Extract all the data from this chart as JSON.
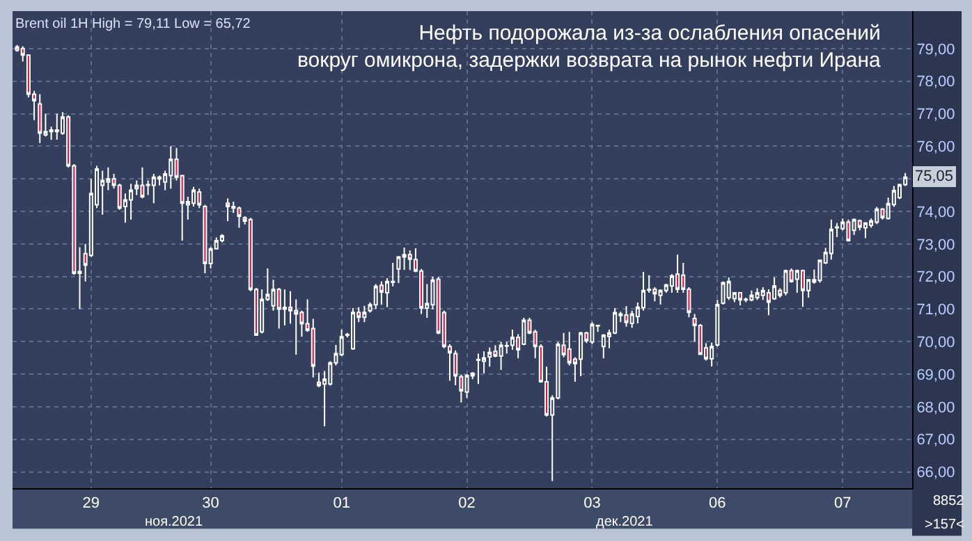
{
  "chart_data": {
    "type": "candlestick",
    "title": "Нефть подорожала из-за ослабления опасений\nвокруг омикрона, задержки возврата на рынок нефти Ирана",
    "subtitle": "Brent oil 1H High = 79,11 Low = 65,72",
    "categories": [
      null,
      null,
      null,
      null,
      null,
      null,
      null,
      null,
      null,
      null,
      null,
      null,
      null,
      "29",
      null,
      null,
      null,
      null,
      null,
      null,
      null,
      null,
      null,
      null,
      null,
      null,
      null,
      null,
      null,
      null,
      null,
      null,
      null,
      null,
      "30",
      null,
      null,
      null,
      null,
      null,
      null,
      null,
      null,
      null,
      null,
      null,
      null,
      null,
      null,
      null,
      null,
      null,
      null,
      null,
      null,
      null,
      null,
      "01",
      null,
      null,
      null,
      null,
      null,
      null,
      null,
      null,
      null,
      null,
      null,
      null,
      null,
      null,
      null,
      null,
      null,
      null,
      null,
      null,
      null,
      "02",
      null,
      null,
      null,
      null,
      null,
      null,
      null,
      null,
      null,
      null,
      null,
      null,
      null,
      null,
      null,
      null,
      null,
      null,
      null,
      null,
      null,
      "03",
      null,
      null,
      null,
      null,
      null,
      null,
      null,
      null,
      null,
      null,
      null,
      null,
      null,
      null,
      null,
      null,
      null,
      null,
      null,
      null,
      null,
      "06",
      null,
      null,
      null,
      null,
      null,
      null,
      null,
      null,
      null,
      null,
      null,
      null,
      null,
      null,
      null,
      null,
      null,
      null,
      null,
      null,
      null,
      "07",
      null,
      null,
      null,
      null,
      null,
      null,
      null,
      null,
      null,
      null,
      null
    ],
    "ohlc": [
      [
        78.95,
        79.11,
        78.9,
        79.05
      ],
      [
        79.0,
        79.07,
        78.6,
        78.8
      ],
      [
        78.8,
        78.8,
        77.5,
        77.6
      ],
      [
        77.6,
        77.7,
        76.8,
        77.4
      ],
      [
        77.3,
        77.6,
        76.1,
        76.4
      ],
      [
        76.35,
        77.0,
        76.3,
        76.45
      ],
      [
        76.45,
        76.6,
        76.2,
        76.5
      ],
      [
        76.5,
        77.0,
        76.2,
        76.45
      ],
      [
        76.4,
        77.05,
        76.35,
        76.9
      ],
      [
        76.9,
        76.95,
        75.35,
        75.4
      ],
      [
        75.4,
        75.45,
        72.05,
        72.1
      ],
      [
        72.1,
        72.9,
        71.0,
        72.15
      ],
      [
        72.7,
        73.0,
        71.85,
        72.35
      ],
      [
        72.65,
        75.0,
        72.6,
        74.55
      ],
      [
        74.2,
        75.4,
        74.1,
        75.3
      ],
      [
        74.8,
        75.25,
        73.9,
        74.95
      ],
      [
        74.9,
        75.35,
        74.65,
        75.0
      ],
      [
        75.0,
        75.15,
        74.7,
        74.8
      ],
      [
        74.8,
        74.85,
        74.05,
        74.1
      ],
      [
        74.15,
        74.55,
        73.65,
        74.35
      ],
      [
        74.35,
        74.85,
        73.75,
        74.65
      ],
      [
        74.7,
        74.95,
        74.5,
        74.8
      ],
      [
        74.8,
        75.35,
        74.4,
        74.45
      ],
      [
        74.8,
        74.95,
        74.5,
        74.82
      ],
      [
        74.8,
        75.15,
        74.25,
        75.05
      ],
      [
        75.0,
        75.1,
        74.8,
        75.05
      ],
      [
        74.9,
        75.25,
        74.65,
        75.15
      ],
      [
        75.1,
        76.0,
        74.7,
        75.6
      ],
      [
        75.6,
        75.95,
        74.95,
        75.05
      ],
      [
        75.1,
        75.1,
        73.1,
        74.25
      ],
      [
        74.2,
        74.45,
        73.75,
        74.3
      ],
      [
        74.25,
        74.75,
        74.15,
        74.65
      ],
      [
        74.6,
        74.7,
        74.1,
        74.2
      ],
      [
        74.15,
        74.2,
        72.1,
        72.4
      ],
      [
        72.4,
        72.9,
        72.25,
        72.85
      ],
      [
        72.85,
        73.2,
        72.85,
        73.1
      ],
      [
        73.1,
        73.3,
        73.05,
        73.25
      ],
      [
        74.25,
        74.4,
        73.7,
        74.15
      ],
      [
        74.1,
        74.3,
        73.95,
        74.15
      ],
      [
        74.1,
        74.15,
        73.5,
        73.85
      ],
      [
        73.8,
        73.85,
        73.6,
        73.7
      ],
      [
        73.75,
        73.8,
        71.55,
        71.6
      ],
      [
        71.6,
        71.65,
        70.2,
        70.2
      ],
      [
        70.3,
        71.6,
        70.25,
        71.3
      ],
      [
        71.3,
        72.25,
        71.25,
        71.45
      ],
      [
        71.1,
        71.9,
        70.95,
        71.6
      ],
      [
        71.6,
        71.65,
        70.4,
        71.0
      ],
      [
        71.0,
        71.6,
        70.5,
        71.05
      ],
      [
        71.05,
        71.55,
        70.55,
        70.95
      ],
      [
        70.95,
        71.3,
        69.6,
        70.85
      ],
      [
        70.9,
        70.95,
        70.15,
        70.55
      ],
      [
        70.55,
        71.3,
        70.3,
        70.35
      ],
      [
        70.4,
        70.7,
        68.9,
        69.25
      ],
      [
        68.75,
        69.05,
        68.6,
        68.65
      ],
      [
        68.7,
        69.1,
        67.4,
        68.85
      ],
      [
        68.7,
        69.4,
        68.65,
        69.35
      ],
      [
        69.35,
        69.9,
        69.27,
        69.63
      ],
      [
        69.6,
        70.37,
        69.56,
        70.15
      ],
      [
        70.2,
        70.27,
        70.13,
        70.22
      ],
      [
        69.78,
        71.03,
        69.75,
        70.9
      ],
      [
        70.9,
        71.06,
        70.6,
        70.75
      ],
      [
        70.75,
        71.1,
        70.6,
        70.9
      ],
      [
        70.95,
        71.2,
        70.89,
        71.13
      ],
      [
        71.13,
        71.77,
        71.0,
        71.7
      ],
      [
        71.73,
        71.85,
        71.13,
        71.52
      ],
      [
        71.5,
        71.95,
        71.06,
        71.85
      ],
      [
        71.82,
        72.42,
        71.7,
        71.85
      ],
      [
        72.23,
        72.63,
        71.8,
        72.6
      ],
      [
        72.6,
        72.89,
        72.2,
        72.67
      ],
      [
        72.67,
        72.8,
        72.2,
        72.53
      ],
      [
        72.52,
        72.87,
        72.13,
        72.17
      ],
      [
        72.17,
        72.23,
        70.85,
        71.03
      ],
      [
        71.03,
        71.77,
        70.73,
        71.17
      ],
      [
        71.13,
        71.99,
        70.99,
        71.89
      ],
      [
        71.92,
        71.99,
        70.23,
        70.27
      ],
      [
        70.89,
        70.95,
        69.8,
        69.85
      ],
      [
        69.85,
        69.92,
        68.8,
        69.66
      ],
      [
        69.63,
        69.73,
        68.66,
        68.95
      ],
      [
        68.92,
        68.99,
        68.13,
        68.49
      ],
      [
        68.45,
        69.0,
        68.27,
        68.96
      ],
      [
        69.03,
        69.06,
        68.85,
        68.95
      ],
      [
        69.43,
        69.63,
        68.7,
        69.45
      ],
      [
        69.4,
        69.7,
        69.03,
        69.5
      ],
      [
        69.53,
        69.82,
        69.23,
        69.67
      ],
      [
        69.7,
        69.89,
        69.52,
        69.56
      ],
      [
        69.56,
        69.99,
        69.13,
        69.89
      ],
      [
        69.86,
        69.99,
        69.63,
        69.88
      ],
      [
        69.89,
        70.37,
        69.75,
        70.13
      ],
      [
        70.13,
        70.23,
        69.49,
        69.75
      ],
      [
        69.92,
        70.73,
        69.89,
        70.66
      ],
      [
        70.66,
        70.73,
        70.23,
        70.27
      ],
      [
        70.3,
        70.37,
        69.49,
        69.85
      ],
      [
        69.85,
        69.92,
        68.74,
        68.77
      ],
      [
        68.77,
        69.23,
        67.7,
        67.75
      ],
      [
        67.75,
        68.35,
        65.72,
        68.27
      ],
      [
        68.27,
        69.99,
        68.23,
        69.92
      ],
      [
        69.89,
        70.27,
        69.52,
        69.6
      ],
      [
        69.77,
        70.3,
        69.27,
        69.35
      ],
      [
        69.46,
        69.52,
        68.77,
        69.32
      ],
      [
        69.46,
        70.3,
        68.94,
        70.27
      ],
      [
        70.27,
        70.3,
        69.96,
        70.03
      ],
      [
        69.99,
        70.6,
        69.92,
        70.53
      ],
      [
        70.5,
        70.5,
        70.3,
        70.48
      ],
      [
        69.85,
        70.23,
        69.49,
        70.2
      ],
      [
        70.16,
        70.37,
        69.8,
        70.27
      ],
      [
        70.27,
        71.03,
        70.23,
        70.89
      ],
      [
        70.8,
        70.92,
        70.6,
        70.85
      ],
      [
        70.82,
        71.09,
        70.46,
        70.59
      ],
      [
        70.56,
        70.95,
        70.42,
        70.85
      ],
      [
        70.77,
        71.2,
        70.56,
        71.06
      ],
      [
        71.04,
        72.14,
        70.95,
        71.57
      ],
      [
        71.58,
        72.04,
        71.5,
        71.6
      ],
      [
        71.61,
        71.67,
        71.24,
        71.47
      ],
      [
        71.42,
        71.61,
        71.14,
        71.57
      ],
      [
        71.57,
        71.78,
        71.5,
        71.74
      ],
      [
        71.71,
        72.07,
        71.5,
        72.02
      ],
      [
        72.07,
        72.67,
        71.5,
        71.61
      ],
      [
        72.04,
        72.42,
        71.5,
        71.61
      ],
      [
        71.61,
        71.67,
        70.75,
        70.9
      ],
      [
        70.71,
        70.85,
        69.99,
        70.5
      ],
      [
        70.5,
        70.54,
        69.61,
        69.61
      ],
      [
        69.81,
        69.95,
        69.42,
        69.47
      ],
      [
        69.47,
        69.97,
        69.24,
        69.85
      ],
      [
        69.9,
        71.28,
        69.85,
        71.14
      ],
      [
        71.18,
        71.85,
        71.14,
        71.81
      ],
      [
        71.35,
        71.97,
        71.28,
        71.85
      ],
      [
        71.32,
        71.52,
        71.21,
        71.5
      ],
      [
        71.5,
        71.52,
        71.11,
        71.28
      ],
      [
        71.28,
        71.35,
        71.21,
        71.3
      ],
      [
        71.28,
        71.57,
        71.24,
        71.42
      ],
      [
        71.35,
        71.64,
        71.28,
        71.5
      ],
      [
        71.42,
        71.67,
        71.28,
        71.57
      ],
      [
        71.5,
        71.61,
        70.81,
        71.21
      ],
      [
        71.32,
        71.97,
        71.28,
        71.71
      ],
      [
        71.57,
        71.64,
        71.35,
        71.42
      ],
      [
        71.5,
        72.21,
        71.42,
        72.18
      ],
      [
        72.18,
        72.25,
        71.81,
        71.85
      ],
      [
        71.92,
        72.21,
        71.5,
        72.18
      ],
      [
        72.18,
        72.21,
        71.07,
        71.57
      ],
      [
        71.57,
        71.92,
        71.35,
        71.9
      ],
      [
        71.83,
        72.21,
        71.78,
        71.9
      ],
      [
        71.88,
        72.52,
        71.81,
        72.5
      ],
      [
        72.42,
        72.88,
        72.38,
        72.74
      ],
      [
        72.71,
        73.75,
        72.52,
        73.45
      ],
      [
        73.5,
        73.64,
        73.21,
        73.52
      ],
      [
        73.47,
        73.78,
        73.42,
        73.67
      ],
      [
        73.67,
        73.75,
        73.07,
        73.1
      ],
      [
        73.42,
        73.78,
        73.28,
        73.75
      ],
      [
        73.71,
        73.75,
        73.42,
        73.52
      ],
      [
        73.5,
        73.67,
        73.18,
        73.64
      ],
      [
        73.57,
        73.78,
        73.5,
        73.71
      ],
      [
        73.67,
        74.14,
        73.61,
        74.07
      ],
      [
        74.07,
        74.1,
        73.75,
        73.81
      ],
      [
        73.78,
        74.42,
        73.75,
        74.24
      ],
      [
        74.21,
        74.78,
        74.14,
        74.64
      ],
      [
        74.42,
        74.85,
        74.38,
        74.82
      ],
      [
        74.82,
        75.18,
        74.78,
        75.05
      ]
    ],
    "ylim": [
      65.5,
      80.15
    ],
    "yticks": [
      {
        "value": 66,
        "label": "66,00"
      },
      {
        "value": 67,
        "label": "67,00"
      },
      {
        "value": 68,
        "label": "68,00"
      },
      {
        "value": 69,
        "label": "69,00"
      },
      {
        "value": 70,
        "label": "70,00"
      },
      {
        "value": 71,
        "label": "71,00"
      },
      {
        "value": 72,
        "label": "72,00"
      },
      {
        "value": 73,
        "label": "73,00"
      },
      {
        "value": 74,
        "label": "74,00"
      },
      {
        "value": 75,
        "label": null
      },
      {
        "value": 76,
        "label": "76,00"
      },
      {
        "value": 77,
        "label": "77,00"
      },
      {
        "value": 78,
        "label": "78,00"
      },
      {
        "value": 79,
        "label": "79,00"
      }
    ],
    "annotations": [
      {
        "text": "75,05",
        "y": 75.05
      },
      "ноя.2021",
      "дек.2021",
      "8852",
      ">157<"
    ],
    "grid": true
  }
}
